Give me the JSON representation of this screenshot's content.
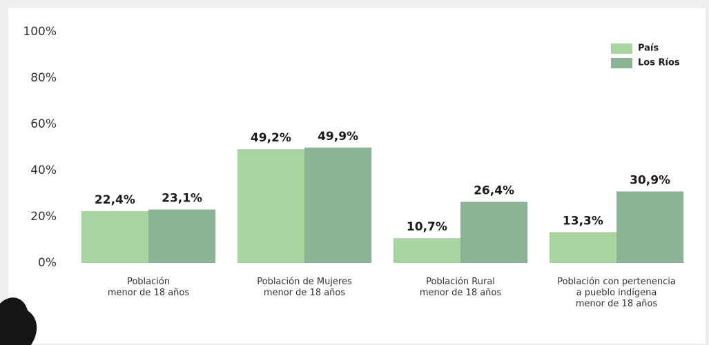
{
  "chart_data": {
    "type": "bar",
    "categories": [
      [
        "Población",
        "menor de 18 años"
      ],
      [
        "Población de Mujeres",
        "menor de 18 años"
      ],
      [
        "Población Rural",
        "menor de 18 años"
      ],
      [
        "Población con  pertenencia",
        "a pueblo indígena",
        "menor de 18 años"
      ]
    ],
    "series": [
      {
        "name": "País",
        "color": "#a9d4a2",
        "values": [
          22.4,
          49.2,
          10.7,
          13.3
        ],
        "value_labels": [
          "22,4%",
          "49,2%",
          "10,7%",
          "13,3%"
        ]
      },
      {
        "name": "Los Ríos",
        "color": "#8cb395",
        "values": [
          23.1,
          49.9,
          26.4,
          30.9
        ],
        "value_labels": [
          "23,1%",
          "49,9%",
          "26,4%",
          "30,9%"
        ]
      }
    ],
    "ylim": [
      0,
      100
    ],
    "yticks": [
      {
        "value": 0,
        "label": "0%"
      },
      {
        "value": 20,
        "label": "20%"
      },
      {
        "value": 40,
        "label": "40%"
      },
      {
        "value": 60,
        "label": "60%"
      },
      {
        "value": 80,
        "label": "80%"
      },
      {
        "value": 100,
        "label": "100%"
      }
    ],
    "grid": false,
    "legend": "top-right"
  }
}
